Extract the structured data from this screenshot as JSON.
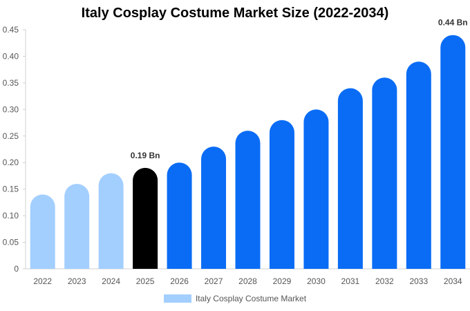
{
  "chart_data": {
    "type": "bar",
    "title": "Italy Cosplay Costume Market Size (2022-2034)",
    "categories": [
      "2022",
      "2023",
      "2024",
      "2025",
      "2026",
      "2027",
      "2028",
      "2029",
      "2030",
      "2031",
      "2032",
      "2033",
      "2034"
    ],
    "series": [
      {
        "name": "Italy Cosplay Costume Market",
        "values": [
          0.14,
          0.16,
          0.18,
          0.19,
          0.2,
          0.23,
          0.26,
          0.28,
          0.3,
          0.34,
          0.36,
          0.39,
          0.44
        ]
      }
    ],
    "ylim": [
      0,
      0.45
    ],
    "yticks": [
      "0",
      "0.05",
      "0.10",
      "0.15",
      "0.20",
      "0.25",
      "0.30",
      "0.35",
      "0.40",
      "0.45"
    ],
    "data_labels": [
      {
        "category": "2025",
        "text": "0.19 Bn"
      },
      {
        "category": "2034",
        "text": "0.44 Bn"
      }
    ],
    "colors": {
      "historical": "#a3cfff",
      "current": "#000000",
      "forecast": "#0a6cf5",
      "legend": "#a3cfff"
    },
    "legend_position": "bottom-center",
    "grid": false
  }
}
